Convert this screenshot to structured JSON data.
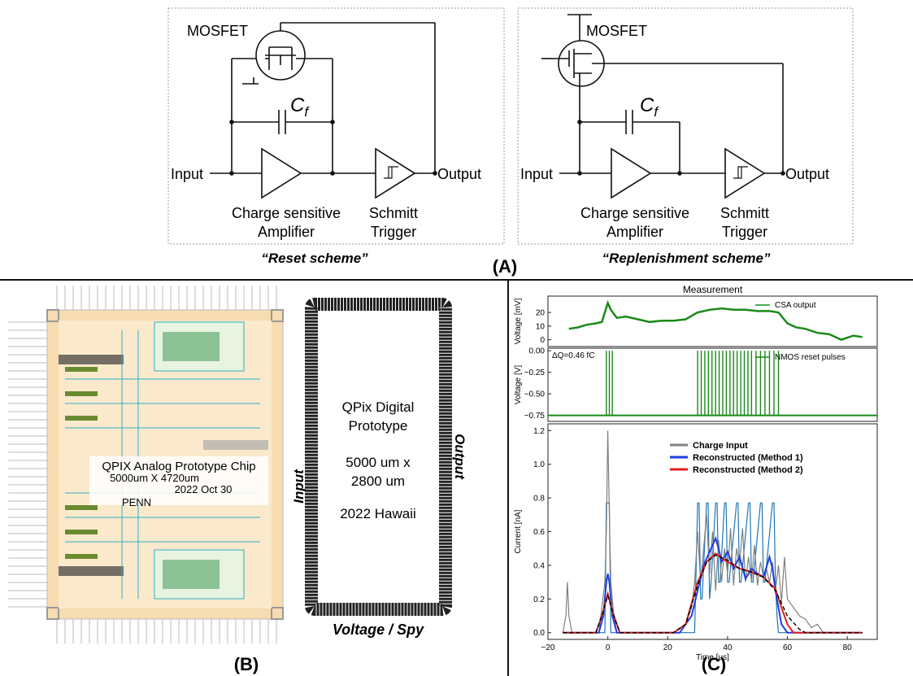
{
  "panelA": {
    "label": "(A)",
    "left": {
      "mosfet": "MOSFET",
      "cf": "C",
      "cf_sub": "f",
      "input": "Input",
      "output": "Output",
      "csa_line1": "Charge sensitive",
      "csa_line2": "Amplifier",
      "st_line1": "Schmitt",
      "st_line2": "Trigger",
      "caption": "“Reset scheme”"
    },
    "right": {
      "mosfet": "MOSFET",
      "cf": "C",
      "cf_sub": "f",
      "input": "Input",
      "output": "Output",
      "csa_line1": "Charge sensitive",
      "csa_line2": "Amplifier",
      "st_line1": "Schmitt",
      "st_line2": "Trigger",
      "caption": "“Replenishment scheme”"
    }
  },
  "panelB": {
    "label": "(B)",
    "chip_line1": "QPIX Analog Prototype Chip",
    "chip_line2": "5000um X 4720um",
    "chip_line3": "2022 Oct 30",
    "chip_line4": "PENN",
    "digital_line1": "QPix Digital",
    "digital_line2": "Prototype",
    "digital_line3": "5000 um x",
    "digital_line4": "2800 um",
    "digital_line5": "2022 Hawaii",
    "input_label": "Input",
    "output_label": "Output",
    "bottom_label": "Voltage / Spy"
  },
  "panelC": {
    "label": "(C)",
    "chart_data": [
      {
        "type": "line",
        "title": "Measurement",
        "ylabel": "Voltage [mV]",
        "xlim": [
          -20,
          90
        ],
        "ylim": [
          -5,
          32
        ],
        "yticks": [
          0,
          10,
          20
        ],
        "series": [
          {
            "name": "CSA output",
            "color": "#1a8a1a",
            "x": [
              -13,
              -10,
              -7,
              -4,
              -2,
              0,
              1,
              3,
              6,
              10,
              14,
              18,
              22,
              26,
              30,
              34,
              38,
              42,
              46,
              50,
              54,
              57,
              60,
              63,
              66,
              70,
              74,
              78,
              82,
              85
            ],
            "y": [
              8,
              9,
              11,
              12,
              13,
              27,
              22,
              16,
              17,
              15,
              13,
              14,
              14,
              15,
              20,
              22,
              23,
              22,
              22,
              21,
              21,
              20,
              12,
              9,
              8,
              5,
              4,
              0,
              3,
              2
            ]
          }
        ]
      },
      {
        "type": "line",
        "ylabel": "Voltage [V]",
        "annotation": "ΔQ=0.46 fC",
        "xlim": [
          -20,
          90
        ],
        "ylim": [
          -0.82,
          0.03
        ],
        "yticks": [
          0.0,
          -0.25,
          -0.5,
          -0.75
        ],
        "ytick_labels": [
          "0.00",
          "−0.25",
          "−0.50",
          "−0.75"
        ],
        "series": [
          {
            "name": "NMOS reset pulses",
            "color": "#1a8a1a",
            "baseline": -0.75,
            "pulse_times": [
              -0.5,
              0.5,
              1.5,
              30,
              31.2,
              32.4,
              33.6,
              34.8,
              36,
              37.2,
              38.4,
              39.6,
              40.8,
              42,
              43.2,
              44.4,
              45.6,
              46.8,
              48,
              49.5,
              51,
              52.5,
              54,
              55.5,
              57
            ]
          }
        ]
      },
      {
        "type": "line",
        "ylabel": "Current [nA]",
        "xlabel": "Time [μs]",
        "xlim": [
          -20,
          90
        ],
        "ylim": [
          -0.04,
          1.24
        ],
        "xticks": [
          -20,
          0,
          20,
          40,
          60,
          80
        ],
        "xtick_labels": [
          "−20",
          "0",
          "20",
          "40",
          "60",
          "80"
        ],
        "yticks": [
          0.0,
          0.2,
          0.4,
          0.6,
          0.8,
          1.0,
          1.2
        ],
        "ytick_labels": [
          "0.0",
          "0.2",
          "0.4",
          "0.6",
          "0.8",
          "1.0",
          "1.2"
        ],
        "series": [
          {
            "name": "Charge Input",
            "color": "#808080",
            "x": [
              -15,
              -14,
              -13.5,
              -13,
              -12,
              -3,
              -1,
              -0.5,
              0,
              0.5,
              1,
              2,
              3,
              24,
              26,
              28,
              29,
              30,
              31,
              32,
              33,
              34,
              35,
              36,
              37,
              38,
              39,
              40,
              41,
              42,
              43,
              44,
              45,
              46,
              47,
              48,
              49,
              50,
              51,
              52,
              53,
              54,
              55,
              56,
              57,
              58,
              59,
              60,
              62,
              64,
              66,
              68,
              70,
              72
            ],
            "y": [
              0,
              0.1,
              0.3,
              0.1,
              0,
              0,
              0.3,
              0.6,
              1.2,
              0.7,
              0.3,
              0.1,
              0,
              0,
              0.05,
              0.15,
              0.3,
              0.6,
              0.3,
              0.5,
              0.7,
              0.35,
              0.6,
              0.25,
              0.55,
              0.3,
              0.5,
              0.35,
              0.62,
              0.28,
              0.5,
              0.4,
              0.62,
              0.3,
              0.45,
              0.3,
              0.52,
              0.28,
              0.42,
              0.33,
              0.38,
              0.3,
              0.42,
              0.25,
              0.4,
              0.18,
              0.45,
              0.2,
              0.15,
              0.1,
              0.08,
              0.03,
              0.05,
              0
            ]
          },
          {
            "name": "Reconstructed (Method 1)",
            "color": "#1f3fe0",
            "x": [
              -15,
              -3,
              -1.5,
              -0.5,
              0,
              0.5,
              1.5,
              3,
              24,
              28,
              30,
              32,
              34,
              36,
              37,
              38,
              40,
              42,
              44,
              46,
              48,
              50,
              52,
              54,
              55,
              56,
              57,
              58,
              60,
              85
            ],
            "y": [
              0,
              0,
              0.1,
              0.3,
              0.35,
              0.3,
              0.1,
              0,
              0,
              0.1,
              0.25,
              0.4,
              0.48,
              0.56,
              0.5,
              0.42,
              0.48,
              0.38,
              0.45,
              0.32,
              0.38,
              0.35,
              0.33,
              0.45,
              0.38,
              0.25,
              0.15,
              0.05,
              0,
              0
            ]
          },
          {
            "name": "Reconstructed (Method 2)",
            "color": "#e02020",
            "x": [
              -15,
              -4,
              -2,
              0,
              2,
              4,
              22,
              26,
              30,
              33,
              36,
              40,
              44,
              48,
              52,
              56,
              58,
              60,
              62,
              85
            ],
            "y": [
              0,
              0,
              0.1,
              0.23,
              0.1,
              0,
              0,
              0.05,
              0.3,
              0.42,
              0.47,
              0.42,
              0.38,
              0.36,
              0.33,
              0.26,
              0.15,
              0.05,
              0,
              0
            ]
          }
        ],
        "extra_series": [
          {
            "color": "#1f77b4",
            "x": [
              -15,
              -1,
              -0.5,
              0,
              0.5,
              1,
              29,
              30,
              30.5,
              31,
              31.5,
              33,
              33.5,
              34,
              34.5,
              36,
              36.5,
              37,
              37.5,
              39,
              39.5,
              40,
              40.5,
              43,
              43.5,
              44,
              44.5,
              47,
              47.5,
              48,
              48.5,
              51,
              51.5,
              52,
              52.5,
              55,
              55.5,
              56,
              56.5,
              57,
              85
            ],
            "y": [
              0,
              0,
              0.77,
              0.77,
              0.77,
              0,
              0,
              0.77,
              0.77,
              0.2,
              0.2,
              0.77,
              0.77,
              0.2,
              0.3,
              0.77,
              0.77,
              0.3,
              0.3,
              0.77,
              0.77,
              0.3,
              0.3,
              0.77,
              0.77,
              0.3,
              0.3,
              0.77,
              0.77,
              0.3,
              0.3,
              0.77,
              0.77,
              0.3,
              0.3,
              0.77,
              0.77,
              0.3,
              0.1,
              0,
              0
            ]
          },
          {
            "color": "#000000",
            "dashed": true,
            "x": [
              -15,
              -4,
              -2,
              0,
              2,
              4,
              22,
              26,
              30,
              33,
              36,
              40,
              44,
              48,
              52,
              56,
              60,
              64,
              66,
              85
            ],
            "y": [
              0,
              0,
              0.1,
              0.22,
              0.1,
              0,
              0,
              0.05,
              0.28,
              0.42,
              0.46,
              0.43,
              0.38,
              0.36,
              0.33,
              0.25,
              0.1,
              0.02,
              0,
              0
            ]
          }
        ]
      }
    ]
  }
}
